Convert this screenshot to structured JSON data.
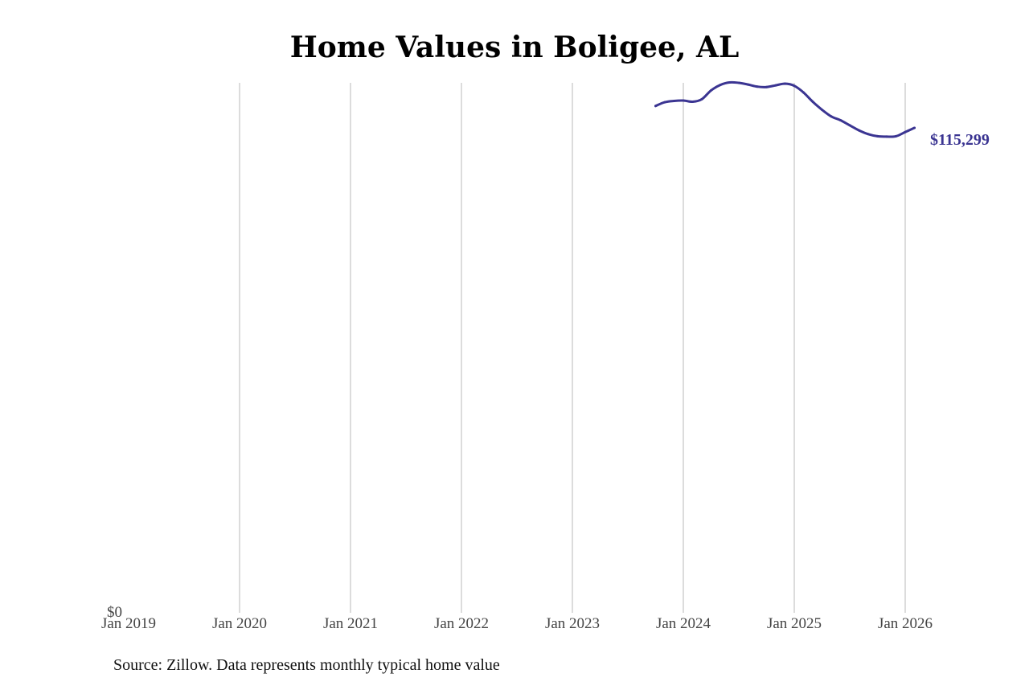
{
  "chart_data": {
    "type": "line",
    "title": "Home Values in Boligee, AL",
    "xlabel": "",
    "ylabel": "",
    "x_ticks": [
      "Jan 2019",
      "Jan 2020",
      "Jan 2021",
      "Jan 2022",
      "Jan 2023",
      "Jan 2024",
      "Jan 2025",
      "Jan 2026"
    ],
    "y_ticks": [
      "$0"
    ],
    "ylim": [
      0,
      126000
    ],
    "grid": "vertical",
    "series": [
      {
        "color": "#3b3592",
        "x": [
          "2023-10",
          "2023-11",
          "2023-12",
          "2024-01",
          "2024-02",
          "2024-03",
          "2024-04",
          "2024-05",
          "2024-06",
          "2024-07",
          "2024-08",
          "2024-09",
          "2024-10",
          "2024-11",
          "2024-12",
          "2025-01",
          "2025-02",
          "2025-03",
          "2025-04",
          "2025-05",
          "2025-06",
          "2025-07",
          "2025-08",
          "2025-09",
          "2025-10",
          "2025-11",
          "2025-12",
          "2026-01",
          "2026-02"
        ],
        "values": [
          120500,
          121400,
          121700,
          121800,
          121500,
          122100,
          124200,
          125500,
          126100,
          126000,
          125600,
          125100,
          125000,
          125400,
          125800,
          125300,
          123700,
          121500,
          119600,
          118000,
          117100,
          115900,
          114700,
          113800,
          113300,
          113200,
          113300,
          114300,
          115299
        ]
      }
    ],
    "end_label": "$115,299"
  },
  "source_note": "Source: Zillow. Data represents monthly typical home value"
}
